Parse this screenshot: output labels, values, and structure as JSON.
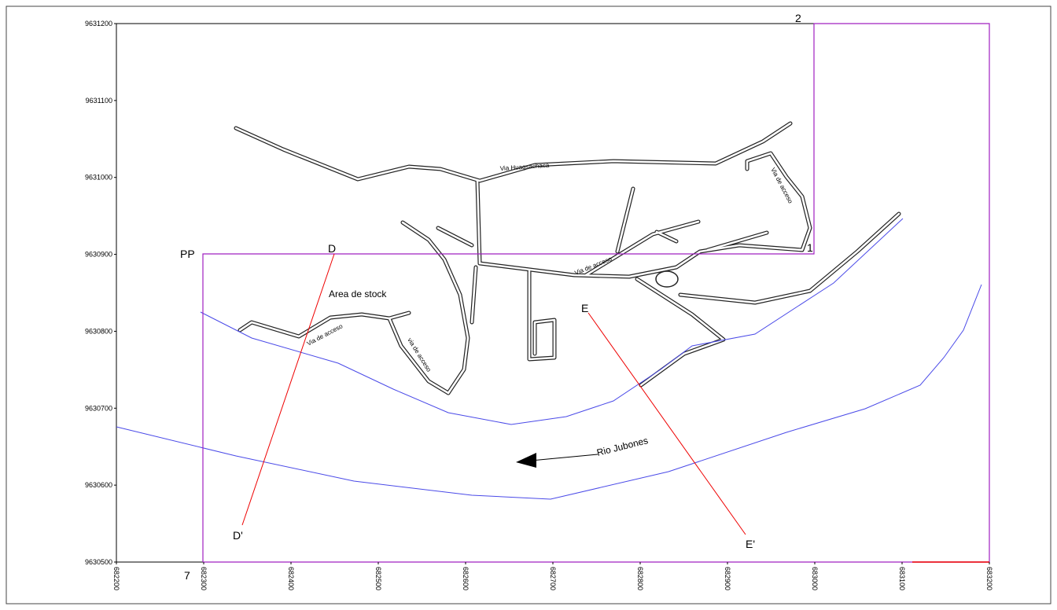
{
  "map": {
    "xlim": [
      682200,
      683200
    ],
    "ylim": [
      9630500,
      9631200
    ],
    "xticks": [
      682200,
      682300,
      682400,
      682500,
      682600,
      682700,
      682800,
      682900,
      683000,
      683100,
      683200
    ],
    "yticks": [
      9630500,
      9630600,
      9630700,
      9630800,
      9630900,
      9631000,
      9631100,
      9631200
    ],
    "point_labels": [
      "PP",
      "D",
      "2",
      "1",
      "7",
      "E",
      "E'",
      "D'"
    ],
    "area_label": "Area de stock",
    "river_label": "Rio Jubones",
    "road_labels": [
      "Via Huagsachaca",
      "Via de acceso",
      "via de acceso",
      "Via de acceso",
      "Via de acceso"
    ]
  }
}
